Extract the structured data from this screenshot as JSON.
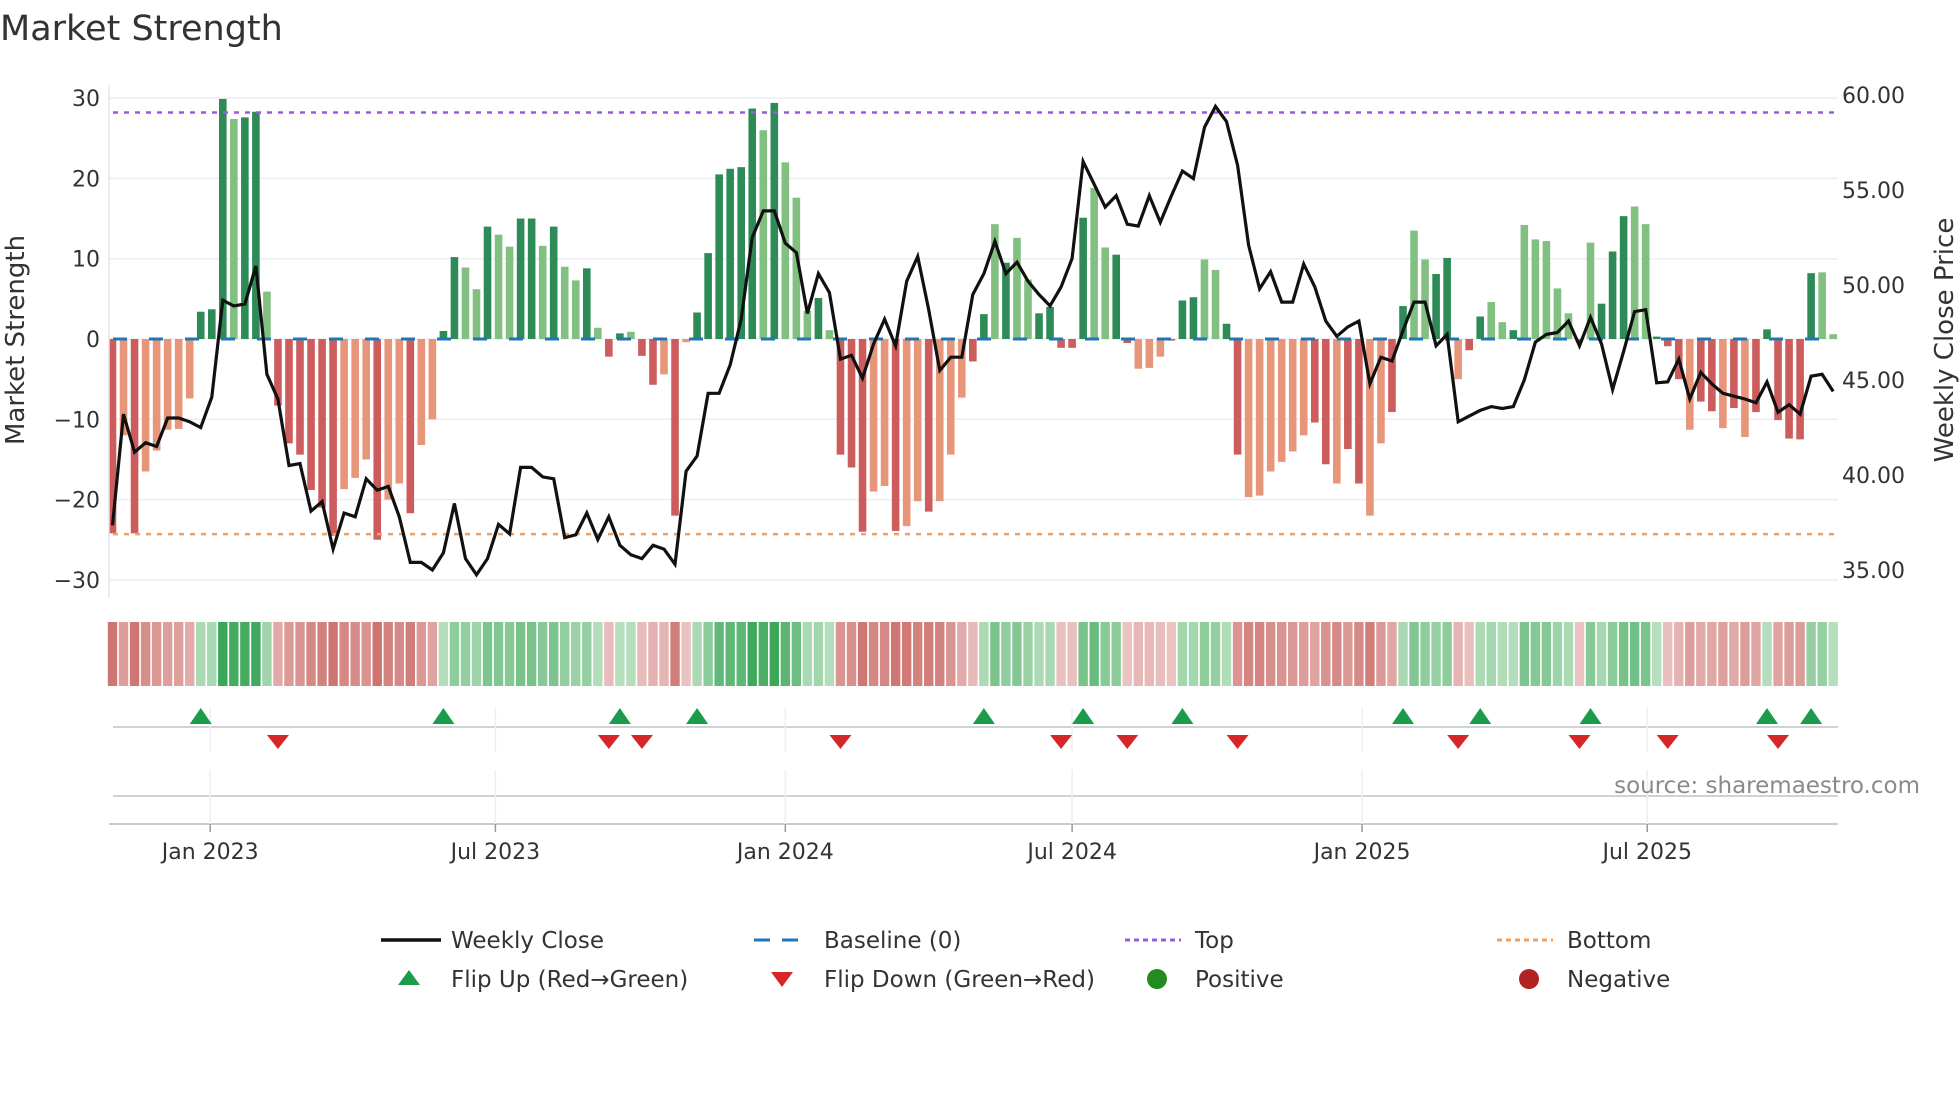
{
  "title": "Market Strength",
  "source": "source: sharemaestro.com",
  "colors": {
    "strong_green": "#2e8b57",
    "weak_green": "#82c082",
    "strong_red": "#cd5c5c",
    "weak_red": "#e8967a",
    "line": "#111111",
    "baseline": "#1f77b4",
    "top": "#9b59e0",
    "bottom": "#f0a060",
    "flip_up": "#1a9c4a",
    "flip_down": "#d62728",
    "positive": "#228b22",
    "negative": "#b22222"
  },
  "chart_data": {
    "type": "bar+line",
    "title": "Market Strength",
    "ylabel": "Market Strength",
    "y2label": "Weekly Close Price",
    "ylim": [
      -32,
      31
    ],
    "y2lim": [
      34,
      61
    ],
    "yticks": [
      30,
      20,
      10,
      0,
      -10,
      -20,
      -30
    ],
    "yticklabels": [
      "30",
      "20",
      "10",
      "0",
      "−10",
      "−20",
      "−30"
    ],
    "y2ticks": [
      60,
      55,
      50,
      45,
      40,
      35
    ],
    "y2ticklabels": [
      "60.00",
      "55.00",
      "50.00",
      "45.00",
      "40.00",
      "35.00"
    ],
    "x_start": "2022-10-31",
    "x_interval": "weekly",
    "xticks": [
      {
        "date": "2023-01-01",
        "label": "Jan 2023"
      },
      {
        "date": "2023-07-01",
        "label": "Jul 2023"
      },
      {
        "date": "2024-01-01",
        "label": "Jan 2024"
      },
      {
        "date": "2024-07-01",
        "label": "Jul 2024"
      },
      {
        "date": "2025-01-01",
        "label": "Jan 2025"
      },
      {
        "date": "2025-07-01",
        "label": "Jul 2025"
      }
    ],
    "top_level": 28.2,
    "bottom_level": -24.3,
    "baseline": 0,
    "strength": [
      -24.2,
      -12,
      -24.2,
      -16.5,
      -13.9,
      -11.3,
      -11.2,
      -7.4,
      3.4,
      3.7,
      29.9,
      27.4,
      27.6,
      28.3,
      5.9,
      -8.3,
      -13,
      -14.4,
      -18.8,
      -21,
      -24.5,
      -18.7,
      -17.3,
      -15,
      -25,
      -20,
      -18,
      -21.7,
      -13.2,
      -10,
      1.0,
      10.2,
      8.9,
      6.2,
      14.0,
      13.0,
      11.5,
      15.0,
      15.0,
      11.6,
      14.0,
      9.0,
      7.3,
      8.8,
      1.4,
      -2.2,
      0.7,
      0.9,
      -2.1,
      -5.7,
      -4.4,
      -22,
      -0.4,
      3.3,
      10.7,
      20.5,
      21.2,
      21.4,
      28.7,
      26,
      29.4,
      22,
      17.6,
      3.5,
      5.1,
      1.1,
      -14.4,
      -16,
      -24,
      -19,
      -18.3,
      -23.9,
      -23.3,
      -20.2,
      -21.5,
      -20.2,
      -14.4,
      -7.3,
      -2.8,
      3.1,
      14.3,
      9.5,
      12.6,
      7.4,
      3.2,
      4.0,
      -1.1,
      -1.1,
      15.1,
      18.8,
      11.4,
      10.5,
      -0.5,
      -3.7,
      -3.6,
      -2.2,
      -0.2,
      4.8,
      5.2,
      9.9,
      8.6,
      1.9,
      -14.4,
      -19.7,
      -19.5,
      -16.5,
      -15.3,
      -14,
      -12,
      -10.4,
      -15.6,
      -18,
      -13.7,
      -18,
      -22,
      -13,
      -9.1,
      4.1,
      13.5,
      9.9,
      8.1,
      10.1,
      -5,
      -1.4,
      2.8,
      4.6,
      2.1,
      1.1,
      14.2,
      12.4,
      12.2,
      6.3,
      3.2,
      -0.3,
      12,
      4.4,
      10.9,
      15.3,
      16.5,
      14.3,
      0.3,
      -0.9,
      -5,
      -11.3,
      -7.8,
      -9,
      -11.1,
      -8.6,
      -12.2,
      -9.1,
      1.2,
      -10.1,
      -12.4,
      -12.5,
      8.2,
      8.3,
      0.6
    ],
    "strength_shade": "dldllllldddlddlddddddllldlldllddlldllddldlldlddldd ldlddddddldllldldddlldlldlllddldllddddd llddlllddd llddllllllddlddllddllddlddlldllllldldddlldddlddldlddddddl",
    "weekly_close": [
      37.35,
      43.2,
      41.2,
      41.7,
      41.5,
      43.0,
      43.0,
      42.8,
      42.5,
      44.1,
      49.2,
      48.9,
      49.0,
      51.0,
      45.3,
      44.0,
      40.5,
      40.6,
      38.1,
      38.6,
      36.1,
      38.0,
      37.8,
      39.8,
      39.2,
      39.4,
      37.8,
      35.4,
      35.4,
      35.0,
      35.9,
      38.5,
      35.6,
      34.75,
      35.6,
      37.4,
      36.9,
      40.4,
      40.4,
      39.9,
      39.8,
      36.7,
      36.85,
      38.0,
      36.6,
      37.8,
      36.3,
      35.8,
      35.6,
      36.3,
      36.1,
      35.3,
      40.2,
      41.0,
      44.3,
      44.3,
      45.8,
      48.2,
      52.5,
      53.9,
      53.9,
      52.2,
      51.7,
      48.5,
      50.6,
      49.6,
      46.1,
      46.3,
      45.1,
      46.9,
      48.2,
      46.8,
      50.2,
      51.5,
      48.7,
      45.5,
      46.2,
      46.2,
      49.5,
      50.6,
      52.3,
      50.6,
      51.2,
      50.2,
      49.5,
      48.9,
      49.9,
      51.4,
      56.5,
      55.3,
      54.1,
      54.7,
      53.2,
      53.1,
      54.7,
      53.3,
      54.7,
      56.0,
      55.6,
      58.3,
      59.4,
      58.6,
      56.3,
      52.1,
      49.8,
      50.7,
      49.1,
      49.1,
      51.1,
      49.9,
      48.1,
      47.3,
      47.8,
      48.1,
      44.8,
      46.2,
      46.0,
      47.6,
      49.1,
      49.1,
      46.8,
      47.4,
      42.8,
      43.1,
      43.4,
      43.6,
      43.5,
      43.6,
      45.0,
      47.0,
      47.4,
      47.5,
      48.1,
      46.8,
      48.3,
      46.9,
      44.5,
      46.5,
      48.6,
      48.7,
      44.85,
      44.9,
      46.1,
      44.0,
      45.4,
      44.8,
      44.3,
      44.15,
      44.0,
      43.8,
      44.9,
      43.3,
      43.7,
      43.2,
      45.2,
      45.3,
      44.4
    ],
    "flip_up_weeks": [
      8,
      30,
      46,
      53,
      79,
      88,
      97,
      117,
      124,
      134,
      150,
      154
    ],
    "flip_down_weeks": [
      15,
      45,
      48,
      66,
      86,
      92,
      102,
      122,
      133,
      141,
      151
    ],
    "legend": {
      "placement": "bottom",
      "items": [
        {
          "key": "line",
          "label": "Weekly Close"
        },
        {
          "key": "baseline",
          "label": "Baseline (0)"
        },
        {
          "key": "top",
          "label": "Top"
        },
        {
          "key": "bottom",
          "label": "Bottom"
        },
        {
          "key": "flip_up",
          "label": "Flip Up (Red→Green)"
        },
        {
          "key": "flip_down",
          "label": "Flip Down (Green→Red)"
        },
        {
          "key": "positive",
          "label": "Positive"
        },
        {
          "key": "negative",
          "label": "Negative"
        }
      ]
    }
  }
}
